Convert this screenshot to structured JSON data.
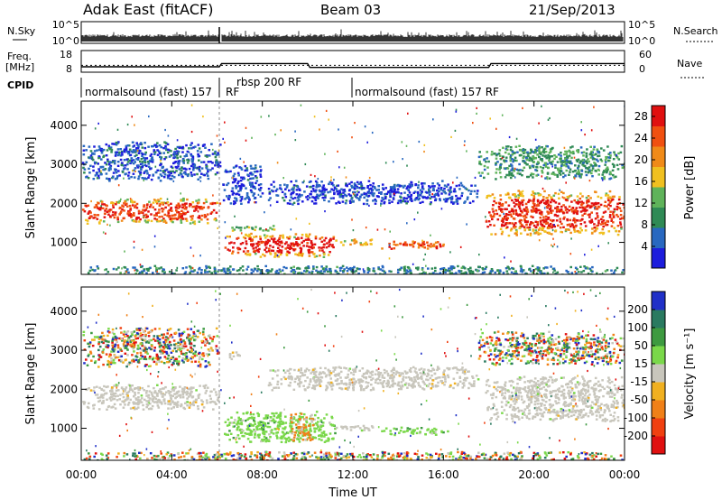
{
  "header": {
    "station": "Adak East (fitACF)",
    "beam": "Beam 03",
    "date": "21/Sep/2013"
  },
  "top_panels": {
    "nsky_label": "N.Sky",
    "nsky_ticks": [
      "10^5",
      "10^0"
    ],
    "nsearch_label": "N.Search",
    "nsearch_ticks": [
      "10^5",
      "10^0"
    ],
    "freq_label": "Freq.",
    "freq_unit": "[MHz]",
    "freq_ticks": [
      "18",
      "8"
    ],
    "freq_values_mhz": [
      [
        0,
        10.5
      ],
      [
        6.1,
        10.5
      ],
      [
        6.2,
        12
      ],
      [
        10,
        12
      ],
      [
        10.1,
        10.2
      ],
      [
        18,
        10.2
      ],
      [
        18.1,
        12
      ],
      [
        24,
        12
      ]
    ],
    "nave_label": "Nave",
    "nave_ticks": [
      "60",
      "0"
    ],
    "nave_values": [
      [
        0,
        19
      ],
      [
        6.1,
        19
      ],
      [
        6.2,
        19
      ],
      [
        10,
        19
      ],
      [
        10.1,
        19
      ],
      [
        24,
        19
      ]
    ],
    "cpid_label": "CPID",
    "cpid_segments": [
      {
        "label": "normalsound (fast) 157",
        "start_h": 0
      },
      {
        "label": "RF",
        "start_h": 6.05
      },
      {
        "label": "rbsp 200 RF",
        "start_h": 6.1
      },
      {
        "label": "normalsound (fast) 157 RF",
        "start_h": 12.0
      }
    ]
  },
  "chart_data": [
    {
      "type": "heatmap",
      "name": "power",
      "ylabel": "Slant Range [km]",
      "xlim_hours": [
        0,
        24
      ],
      "ylim_km": [
        180,
        4620
      ],
      "y_ticks": [
        1000,
        2000,
        3000,
        4000
      ],
      "colorbar": {
        "label": "Power [dB]",
        "ticks": [
          4,
          8,
          12,
          16,
          20,
          24,
          28
        ],
        "range": [
          0,
          30
        ],
        "colors": [
          "#1d1ddc",
          "#2868c0",
          "#2f8a55",
          "#5fb35a",
          "#f0c020",
          "#f08a18",
          "#f05010",
          "#e01010"
        ]
      },
      "regions": [
        {
          "h0": 0.0,
          "h1": 6.1,
          "r0": 1500,
          "r1": 2150,
          "level": 16,
          "core_level": 26
        },
        {
          "h0": 0.0,
          "h1": 6.1,
          "r0": 2600,
          "r1": 3600,
          "level": 5
        },
        {
          "h0": 6.3,
          "h1": 11.2,
          "r0": 650,
          "r1": 1250,
          "level": 18,
          "core_level": 28
        },
        {
          "h0": 6.6,
          "h1": 8.5,
          "r0": 1300,
          "r1": 1450,
          "level": 12
        },
        {
          "h0": 11.2,
          "h1": 13.0,
          "r0": 950,
          "r1": 1100,
          "level": 18
        },
        {
          "h0": 13.2,
          "h1": 16.2,
          "r0": 850,
          "r1": 1050,
          "level": 24
        },
        {
          "h0": 8.2,
          "h1": 17.5,
          "r0": 2000,
          "r1": 2600,
          "level": 4
        },
        {
          "h0": 6.2,
          "h1": 8.0,
          "r0": 2000,
          "r1": 3000,
          "level": 4
        },
        {
          "h0": 17.8,
          "h1": 24.0,
          "r0": 1200,
          "r1": 2350,
          "level": 18,
          "core_level": 27
        },
        {
          "h0": 17.5,
          "h1": 24.0,
          "r0": 2650,
          "r1": 3500,
          "level": 10
        },
        {
          "h0": 0.0,
          "h1": 24.0,
          "r0": 180,
          "r1": 420,
          "level": 8
        }
      ]
    },
    {
      "type": "heatmap",
      "name": "velocity",
      "ylabel": "Slant Range [km]",
      "xlabel": "Time UT",
      "x_tick_labels": [
        "00:00",
        "04:00",
        "08:00",
        "12:00",
        "16:00",
        "20:00",
        "00:00"
      ],
      "x_ticks_hours": [
        0,
        4,
        8,
        12,
        16,
        20,
        24
      ],
      "xlim_hours": [
        0,
        24
      ],
      "ylim_km": [
        180,
        4620
      ],
      "y_ticks": [
        1000,
        2000,
        3000,
        4000
      ],
      "colorbar": {
        "label": "Velocity [m s⁻¹]",
        "ticks": [
          200,
          100,
          50,
          15,
          -15,
          -50,
          -100,
          -200
        ],
        "colors": [
          "#2030c8",
          "#2a7a60",
          "#3d9a40",
          "#7ad84a",
          "#c8c6bc",
          "#f0b020",
          "#f08018",
          "#f04010",
          "#e01010"
        ]
      },
      "regions": [
        {
          "h0": 0.0,
          "h1": 6.1,
          "r0": 1500,
          "r1": 2150,
          "class": "ground"
        },
        {
          "h0": 0.0,
          "h1": 6.1,
          "r0": 2600,
          "r1": 3600,
          "class": "mixed"
        },
        {
          "h0": 6.3,
          "h1": 11.2,
          "r0": 650,
          "r1": 1450,
          "class": "green"
        },
        {
          "h0": 9.2,
          "h1": 10.2,
          "r0": 700,
          "r1": 1400,
          "class": "orange"
        },
        {
          "h0": 11.2,
          "h1": 13.0,
          "r0": 950,
          "r1": 1100,
          "class": "ground"
        },
        {
          "h0": 13.2,
          "h1": 16.2,
          "r0": 850,
          "r1": 1050,
          "class": "green"
        },
        {
          "h0": 8.2,
          "h1": 17.5,
          "r0": 2000,
          "r1": 2600,
          "class": "ground"
        },
        {
          "h0": 6.4,
          "h1": 7.0,
          "r0": 2750,
          "r1": 3000,
          "class": "ground"
        },
        {
          "h0": 17.8,
          "h1": 24.0,
          "r0": 1200,
          "r1": 2350,
          "class": "ground"
        },
        {
          "h0": 17.5,
          "h1": 24.0,
          "r0": 2650,
          "r1": 3500,
          "class": "mixed"
        },
        {
          "h0": 0.0,
          "h1": 24.0,
          "r0": 180,
          "r1": 420,
          "class": "mixed"
        }
      ]
    }
  ]
}
